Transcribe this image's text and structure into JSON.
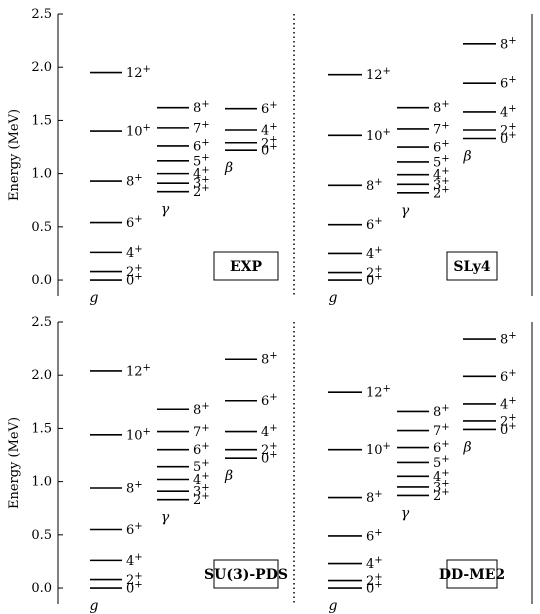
{
  "ylabel": "Energy (MeV)",
  "chart_data": {
    "type": "level-scheme",
    "ylabel": "Energy (MeV)",
    "ylim": [
      -0.15,
      2.5
    ],
    "yticks": [
      0.0,
      0.5,
      1.0,
      1.5,
      2.0,
      2.5
    ],
    "ytick_labels": [
      "0.0",
      "0.5",
      "1.0",
      "1.5",
      "2.0",
      "2.5"
    ],
    "band_labels": {
      "g": "g",
      "gamma": "γ",
      "beta": "β"
    },
    "panels": [
      {
        "label": "EXP",
        "bands": {
          "g": [
            {
              "J": "0",
              "E": 0.0,
              "label": "0+"
            },
            {
              "J": "2",
              "E": 0.08,
              "label": "2+"
            },
            {
              "J": "4",
              "E": 0.26,
              "label": "4+"
            },
            {
              "J": "6",
              "E": 0.54,
              "label": "6+"
            },
            {
              "J": "8",
              "E": 0.93,
              "label": "8+"
            },
            {
              "J": "10",
              "E": 1.4,
              "label": "10+"
            },
            {
              "J": "12",
              "E": 1.95,
              "label": "12+"
            }
          ],
          "gamma": [
            {
              "J": "2",
              "E": 0.83,
              "label": "2+"
            },
            {
              "J": "3",
              "E": 0.91,
              "label": "3+"
            },
            {
              "J": "4",
              "E": 1.0,
              "label": "4+"
            },
            {
              "J": "5",
              "E": 1.12,
              "label": "5+"
            },
            {
              "J": "6",
              "E": 1.26,
              "label": "6+"
            },
            {
              "J": "7",
              "E": 1.43,
              "label": "7+"
            },
            {
              "J": "8",
              "E": 1.62,
              "label": "8+"
            }
          ],
          "beta": [
            {
              "J": "0",
              "E": 1.22,
              "label": "0+"
            },
            {
              "J": "2",
              "E": 1.29,
              "label": "2+"
            },
            {
              "J": "4",
              "E": 1.41,
              "label": "4+"
            },
            {
              "J": "6",
              "E": 1.61,
              "label": "6+"
            }
          ]
        }
      },
      {
        "label": "SLy4",
        "bands": {
          "g": [
            {
              "J": "0",
              "E": 0.0,
              "label": "0+"
            },
            {
              "J": "2",
              "E": 0.07,
              "label": "2+"
            },
            {
              "J": "4",
              "E": 0.25,
              "label": "4+"
            },
            {
              "J": "6",
              "E": 0.52,
              "label": "6+"
            },
            {
              "J": "8",
              "E": 0.89,
              "label": "8+"
            },
            {
              "J": "10",
              "E": 1.36,
              "label": "10+"
            },
            {
              "J": "12",
              "E": 1.93,
              "label": "12+"
            }
          ],
          "gamma": [
            {
              "J": "2",
              "E": 0.82,
              "label": "2+"
            },
            {
              "J": "3",
              "E": 0.9,
              "label": "3+"
            },
            {
              "J": "4",
              "E": 0.99,
              "label": "4+"
            },
            {
              "J": "5",
              "E": 1.11,
              "label": "5+"
            },
            {
              "J": "6",
              "E": 1.25,
              "label": "6+"
            },
            {
              "J": "7",
              "E": 1.42,
              "label": "7+"
            },
            {
              "J": "8",
              "E": 1.62,
              "label": "8+"
            }
          ],
          "beta": [
            {
              "J": "0",
              "E": 1.33,
              "label": "0+"
            },
            {
              "J": "2",
              "E": 1.41,
              "label": "2+"
            },
            {
              "J": "4",
              "E": 1.58,
              "label": "4+"
            },
            {
              "J": "6",
              "E": 1.85,
              "label": "6+"
            },
            {
              "J": "8",
              "E": 2.22,
              "label": "8+"
            }
          ]
        }
      },
      {
        "label": "SU(3)-PDS",
        "bands": {
          "g": [
            {
              "J": "0",
              "E": 0.0,
              "label": "0+"
            },
            {
              "J": "2",
              "E": 0.08,
              "label": "2+"
            },
            {
              "J": "4",
              "E": 0.26,
              "label": "4+"
            },
            {
              "J": "6",
              "E": 0.55,
              "label": "6+"
            },
            {
              "J": "8",
              "E": 0.94,
              "label": "8+"
            },
            {
              "J": "10",
              "E": 1.44,
              "label": "10+"
            },
            {
              "J": "12",
              "E": 2.04,
              "label": "12+"
            }
          ],
          "gamma": [
            {
              "J": "2",
              "E": 0.83,
              "label": "2+"
            },
            {
              "J": "3",
              "E": 0.91,
              "label": "3+"
            },
            {
              "J": "4",
              "E": 1.02,
              "label": "4+"
            },
            {
              "J": "5",
              "E": 1.14,
              "label": "5+"
            },
            {
              "J": "6",
              "E": 1.3,
              "label": "6+"
            },
            {
              "J": "7",
              "E": 1.47,
              "label": "7+"
            },
            {
              "J": "8",
              "E": 1.68,
              "label": "8+"
            }
          ],
          "beta": [
            {
              "J": "0",
              "E": 1.22,
              "label": "0+"
            },
            {
              "J": "2",
              "E": 1.3,
              "label": "2+"
            },
            {
              "J": "4",
              "E": 1.47,
              "label": "4+"
            },
            {
              "J": "6",
              "E": 1.76,
              "label": "6+"
            },
            {
              "J": "8",
              "E": 2.15,
              "label": "8+"
            }
          ]
        }
      },
      {
        "label": "DD-ME2",
        "bands": {
          "g": [
            {
              "J": "0",
              "E": 0.0,
              "label": "0+"
            },
            {
              "J": "2",
              "E": 0.07,
              "label": "2+"
            },
            {
              "J": "4",
              "E": 0.23,
              "label": "4+"
            },
            {
              "J": "6",
              "E": 0.49,
              "label": "6+"
            },
            {
              "J": "8",
              "E": 0.85,
              "label": "8+"
            },
            {
              "J": "10",
              "E": 1.3,
              "label": "10+"
            },
            {
              "J": "12",
              "E": 1.84,
              "label": "12+"
            }
          ],
          "gamma": [
            {
              "J": "2",
              "E": 0.87,
              "label": "2+"
            },
            {
              "J": "3",
              "E": 0.95,
              "label": "3+"
            },
            {
              "J": "4",
              "E": 1.05,
              "label": "4+"
            },
            {
              "J": "5",
              "E": 1.18,
              "label": "5+"
            },
            {
              "J": "6",
              "E": 1.32,
              "label": "6+"
            },
            {
              "J": "7",
              "E": 1.48,
              "label": "7+"
            },
            {
              "J": "8",
              "E": 1.66,
              "label": "8+"
            }
          ],
          "beta": [
            {
              "J": "0",
              "E": 1.49,
              "label": "0+"
            },
            {
              "J": "2",
              "E": 1.57,
              "label": "2+"
            },
            {
              "J": "4",
              "E": 1.73,
              "label": "4+"
            },
            {
              "J": "6",
              "E": 1.99,
              "label": "6+"
            },
            {
              "J": "8",
              "E": 2.34,
              "label": "8+"
            }
          ]
        }
      }
    ]
  }
}
